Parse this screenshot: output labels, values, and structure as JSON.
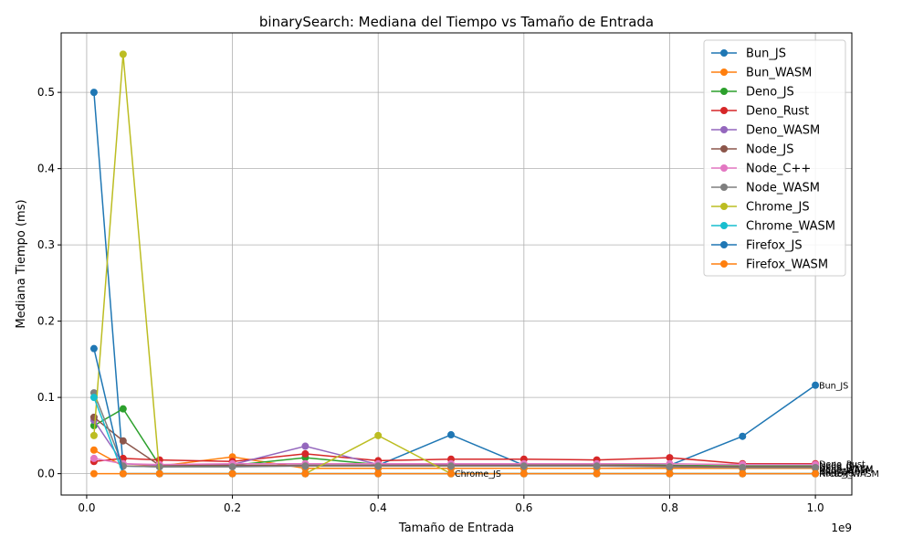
{
  "chart_data": {
    "type": "line",
    "title": "binarySearch: Mediana del Tiempo vs Tamaño de Entrada",
    "xlabel": "Tamaño de Entrada",
    "ylabel": "Mediana Tiempo (ms)",
    "x_offset_label": "1e9",
    "xlim": [
      -0.035,
      1.05
    ],
    "ylim": [
      -0.028,
      0.578
    ],
    "xticks": [
      0.0,
      0.2,
      0.4,
      0.6,
      0.8,
      1.0
    ],
    "xtick_labels": [
      "0.0",
      "0.2",
      "0.4",
      "0.6",
      "0.8",
      "1.0"
    ],
    "yticks": [
      0.0,
      0.1,
      0.2,
      0.3,
      0.4,
      0.5
    ],
    "ytick_labels": [
      "0.0",
      "0.1",
      "0.2",
      "0.3",
      "0.4",
      "0.5"
    ],
    "grid": true,
    "legend_position": "top-right",
    "x": [
      0.01,
      0.05,
      0.1,
      0.2,
      0.3,
      0.4,
      0.5,
      0.6,
      0.7,
      0.8,
      0.9,
      1.0
    ],
    "series": [
      {
        "name": "Bun_JS",
        "color": "#1f77b4",
        "values": [
          0.5,
          0.01,
          0.009,
          0.01,
          0.011,
          0.011,
          0.051,
          0.011,
          0.011,
          0.011,
          0.049,
          0.116
        ]
      },
      {
        "name": "Bun_WASM",
        "color": "#ff7f0e",
        "values": [
          0.031,
          0.01,
          0.01,
          0.022,
          0.007,
          0.007,
          0.007,
          0.007,
          0.007,
          0.007,
          0.007,
          0.007
        ]
      },
      {
        "name": "Deno_JS",
        "color": "#2ca02c",
        "values": [
          0.063,
          0.085,
          0.011,
          0.011,
          0.021,
          0.012,
          0.012,
          0.012,
          0.012,
          0.011,
          0.01,
          0.01
        ]
      },
      {
        "name": "Deno_Rust",
        "color": "#d62728",
        "values": [
          0.016,
          0.02,
          0.018,
          0.016,
          0.026,
          0.017,
          0.019,
          0.019,
          0.018,
          0.021,
          0.013,
          0.013
        ]
      },
      {
        "name": "Deno_WASM",
        "color": "#9467bd",
        "values": [
          0.07,
          0.013,
          0.011,
          0.012,
          0.036,
          0.012,
          0.012,
          0.011,
          0.011,
          0.01,
          0.009,
          0.009
        ]
      },
      {
        "name": "Node_JS",
        "color": "#8c564b",
        "values": [
          0.074,
          0.043,
          0.011,
          0.011,
          0.011,
          0.011,
          0.011,
          0.011,
          0.011,
          0.01,
          0.009,
          0.009
        ]
      },
      {
        "name": "Node_C++",
        "color": "#e377c2",
        "values": [
          0.02,
          0.013,
          0.012,
          0.013,
          0.013,
          0.013,
          0.013,
          0.013,
          0.013,
          0.013,
          0.012,
          0.012
        ]
      },
      {
        "name": "Node_WASM",
        "color": "#7f7f7f",
        "values": [
          0.106,
          0.01,
          0.009,
          0.009,
          0.01,
          0.01,
          0.01,
          0.01,
          0.01,
          0.009,
          0.008,
          0.008
        ]
      },
      {
        "name": "Chrome_JS",
        "color": "#bcbd22",
        "values": [
          0.05,
          0.55,
          0.0,
          0.0,
          0.0,
          0.05,
          0.0,
          0.0,
          0.0,
          0.0,
          0.0,
          0.0
        ]
      },
      {
        "name": "Chrome_WASM",
        "color": "#17becf",
        "values": [
          0.1,
          0.0,
          0.0,
          0.0,
          0.0,
          0.0,
          0.0,
          0.0,
          0.0,
          0.0,
          0.0,
          0.0
        ]
      },
      {
        "name": "Firefox_JS",
        "color": "#1f77b4",
        "values": [
          0.164,
          0.0,
          0.0,
          0.0,
          0.0,
          0.0,
          0.0,
          0.0,
          0.0,
          0.0,
          0.0,
          0.0
        ]
      },
      {
        "name": "Firefox_WASM",
        "color": "#ff7f0e",
        "values": [
          0.0,
          0.0,
          0.0,
          0.0,
          0.0,
          0.0,
          0.0,
          0.0,
          0.0,
          0.0,
          0.0,
          0.0
        ]
      }
    ],
    "annotations": [
      {
        "text": "Bun_JS",
        "x": 1.0,
        "y": 0.116
      },
      {
        "text": "Deno_Rust",
        "x": 1.0,
        "y": 0.013
      },
      {
        "text": "Node_C++",
        "x": 1.0,
        "y": 0.011
      },
      {
        "text": "Deno_JS",
        "x": 1.0,
        "y": 0.009
      },
      {
        "text": "Deno_WASM",
        "x": 1.0,
        "y": 0.007
      },
      {
        "text": "Node_WASM",
        "x": 1.0,
        "y": 0.005
      },
      {
        "text": "Bun_WASM",
        "x": 1.0,
        "y": 0.003
      },
      {
        "text": "Node_JS",
        "x": 1.0,
        "y": 0.001
      },
      {
        "text": "Firefox_WASM",
        "x": 1.0,
        "y": 0.0
      },
      {
        "text": "Chrome_JS",
        "x": 0.5,
        "y": 0.0
      }
    ]
  }
}
